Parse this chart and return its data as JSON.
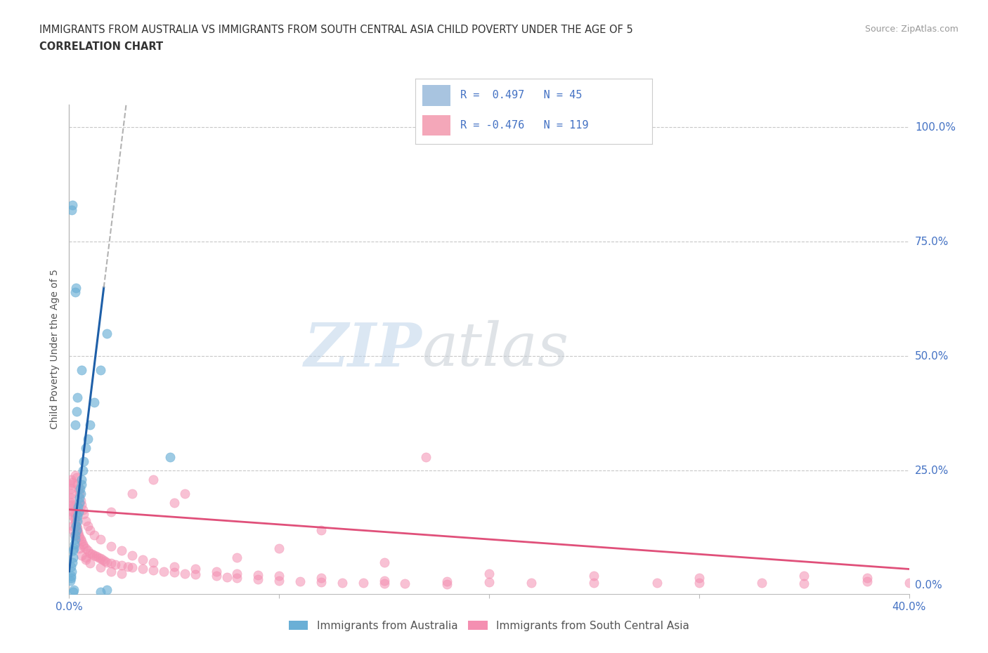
{
  "title_line1": "IMMIGRANTS FROM AUSTRALIA VS IMMIGRANTS FROM SOUTH CENTRAL ASIA CHILD POVERTY UNDER THE AGE OF 5",
  "title_line2": "CORRELATION CHART",
  "source_text": "Source: ZipAtlas.com",
  "ylabel": "Child Poverty Under the Age of 5",
  "xlim": [
    0.0,
    40.0
  ],
  "ylim": [
    -2.0,
    105.0
  ],
  "yticks": [
    0,
    25,
    50,
    75,
    100
  ],
  "ytick_labels": [
    "0.0%",
    "25.0%",
    "50.0%",
    "75.0%",
    "100.0%"
  ],
  "watermark_zip": "ZIP",
  "watermark_atlas": "atlas",
  "australia_color": "#6aafd6",
  "south_asia_color": "#f48fb1",
  "trendline_australia_color": "#1e5fa8",
  "trendline_south_asia_color": "#e0507a",
  "background_color": "#ffffff",
  "grid_color": "#c8c8c8",
  "axis_label_color": "#4472c4",
  "legend_box_color": "#a8c4e0",
  "legend_box_color2": "#f4a7b9",
  "australia_points": [
    [
      0.05,
      1.0
    ],
    [
      0.07,
      2.0
    ],
    [
      0.1,
      1.5
    ],
    [
      0.12,
      3.0
    ],
    [
      0.08,
      4.0
    ],
    [
      0.15,
      5.0
    ],
    [
      0.2,
      6.0
    ],
    [
      0.18,
      7.5
    ],
    [
      0.22,
      8.0
    ],
    [
      0.25,
      9.0
    ],
    [
      0.3,
      10.0
    ],
    [
      0.28,
      11.0
    ],
    [
      0.35,
      12.0
    ],
    [
      0.32,
      13.0
    ],
    [
      0.4,
      14.0
    ],
    [
      0.38,
      15.0
    ],
    [
      0.45,
      16.0
    ],
    [
      0.42,
      17.0
    ],
    [
      0.5,
      18.0
    ],
    [
      0.48,
      19.0
    ],
    [
      0.55,
      20.0
    ],
    [
      0.52,
      21.0
    ],
    [
      0.6,
      22.0
    ],
    [
      0.58,
      23.0
    ],
    [
      0.65,
      25.0
    ],
    [
      0.7,
      27.0
    ],
    [
      0.8,
      30.0
    ],
    [
      0.9,
      32.0
    ],
    [
      1.0,
      35.0
    ],
    [
      1.2,
      40.0
    ],
    [
      1.5,
      47.0
    ],
    [
      0.3,
      64.0
    ],
    [
      0.32,
      65.0
    ],
    [
      1.8,
      55.0
    ],
    [
      4.8,
      28.0
    ],
    [
      0.12,
      82.0
    ],
    [
      0.14,
      83.0
    ],
    [
      0.6,
      47.0
    ],
    [
      0.2,
      -1.5
    ],
    [
      0.22,
      -1.0
    ],
    [
      1.8,
      -1.0
    ],
    [
      1.5,
      -1.5
    ],
    [
      0.28,
      35.0
    ],
    [
      0.35,
      38.0
    ],
    [
      0.4,
      41.0
    ]
  ],
  "south_asia_points": [
    [
      0.05,
      22.0
    ],
    [
      0.08,
      21.0
    ],
    [
      0.1,
      23.0
    ],
    [
      0.12,
      20.0
    ],
    [
      0.15,
      22.5
    ],
    [
      0.08,
      19.0
    ],
    [
      0.1,
      18.0
    ],
    [
      0.12,
      17.5
    ],
    [
      0.15,
      16.0
    ],
    [
      0.18,
      17.0
    ],
    [
      0.2,
      15.0
    ],
    [
      0.22,
      16.0
    ],
    [
      0.25,
      14.5
    ],
    [
      0.28,
      15.0
    ],
    [
      0.3,
      13.5
    ],
    [
      0.32,
      14.0
    ],
    [
      0.35,
      13.0
    ],
    [
      0.38,
      12.5
    ],
    [
      0.4,
      12.0
    ],
    [
      0.42,
      11.5
    ],
    [
      0.45,
      11.0
    ],
    [
      0.5,
      10.5
    ],
    [
      0.55,
      10.0
    ],
    [
      0.6,
      9.5
    ],
    [
      0.65,
      9.0
    ],
    [
      0.7,
      8.5
    ],
    [
      0.8,
      8.0
    ],
    [
      0.9,
      7.5
    ],
    [
      1.0,
      7.0
    ],
    [
      1.1,
      6.8
    ],
    [
      1.2,
      6.5
    ],
    [
      1.3,
      6.3
    ],
    [
      1.4,
      6.0
    ],
    [
      1.5,
      5.8
    ],
    [
      1.6,
      5.5
    ],
    [
      1.7,
      5.3
    ],
    [
      1.8,
      5.0
    ],
    [
      2.0,
      4.8
    ],
    [
      2.2,
      4.5
    ],
    [
      2.5,
      4.3
    ],
    [
      2.8,
      4.0
    ],
    [
      3.0,
      3.8
    ],
    [
      3.5,
      3.5
    ],
    [
      4.0,
      3.3
    ],
    [
      4.5,
      3.0
    ],
    [
      5.0,
      2.8
    ],
    [
      5.5,
      2.5
    ],
    [
      6.0,
      2.3
    ],
    [
      7.0,
      2.0
    ],
    [
      7.5,
      1.8
    ],
    [
      8.0,
      1.5
    ],
    [
      9.0,
      1.3
    ],
    [
      10.0,
      1.0
    ],
    [
      11.0,
      0.8
    ],
    [
      12.0,
      0.7
    ],
    [
      13.0,
      0.5
    ],
    [
      14.0,
      0.5
    ],
    [
      15.0,
      0.3
    ],
    [
      16.0,
      0.3
    ],
    [
      18.0,
      0.2
    ],
    [
      0.3,
      24.0
    ],
    [
      0.35,
      23.5
    ],
    [
      0.4,
      22.0
    ],
    [
      0.45,
      21.0
    ],
    [
      0.5,
      20.0
    ],
    [
      0.55,
      18.5
    ],
    [
      0.6,
      17.5
    ],
    [
      0.65,
      16.5
    ],
    [
      0.7,
      15.5
    ],
    [
      0.8,
      14.0
    ],
    [
      0.9,
      13.0
    ],
    [
      1.0,
      12.0
    ],
    [
      1.2,
      11.0
    ],
    [
      1.5,
      10.0
    ],
    [
      2.0,
      8.5
    ],
    [
      2.5,
      7.5
    ],
    [
      3.0,
      6.5
    ],
    [
      3.5,
      5.5
    ],
    [
      4.0,
      5.0
    ],
    [
      5.0,
      4.0
    ],
    [
      6.0,
      3.5
    ],
    [
      7.0,
      3.0
    ],
    [
      8.0,
      2.5
    ],
    [
      9.0,
      2.2
    ],
    [
      10.0,
      2.0
    ],
    [
      12.0,
      1.5
    ],
    [
      15.0,
      1.0
    ],
    [
      18.0,
      0.8
    ],
    [
      20.0,
      0.7
    ],
    [
      22.0,
      0.5
    ],
    [
      25.0,
      0.5
    ],
    [
      28.0,
      0.5
    ],
    [
      30.0,
      0.5
    ],
    [
      33.0,
      0.5
    ],
    [
      35.0,
      0.3
    ],
    [
      38.0,
      0.8
    ],
    [
      40.0,
      0.5
    ],
    [
      2.0,
      16.0
    ],
    [
      3.0,
      20.0
    ],
    [
      5.5,
      20.0
    ],
    [
      10.0,
      8.0
    ],
    [
      12.0,
      12.0
    ],
    [
      17.0,
      28.0
    ],
    [
      4.0,
      23.0
    ],
    [
      5.0,
      18.0
    ],
    [
      8.0,
      6.0
    ],
    [
      15.0,
      5.0
    ],
    [
      0.6,
      6.5
    ],
    [
      0.8,
      5.5
    ],
    [
      1.0,
      4.8
    ],
    [
      1.5,
      3.8
    ],
    [
      2.0,
      3.0
    ],
    [
      2.5,
      2.5
    ],
    [
      20.0,
      2.5
    ],
    [
      25.0,
      2.0
    ],
    [
      30.0,
      1.5
    ],
    [
      35.0,
      2.0
    ],
    [
      38.0,
      1.5
    ],
    [
      0.15,
      13.0
    ],
    [
      0.2,
      12.0
    ],
    [
      0.25,
      11.0
    ],
    [
      0.5,
      8.0
    ],
    [
      0.8,
      6.0
    ]
  ],
  "aus_trendline_solid_x0": 0.0,
  "aus_trendline_solid_y0": 3.0,
  "aus_trendline_solid_x1": 1.65,
  "aus_trendline_solid_y1": 65.0,
  "aus_trendline_dashed_x0": 1.65,
  "aus_trendline_dashed_y0": 65.0,
  "aus_trendline_dashed_x1": 3.8,
  "aus_trendline_dashed_y1": 105.0,
  "asia_trendline_x0": 0.0,
  "asia_trendline_y0": 16.5,
  "asia_trendline_x1": 40.0,
  "asia_trendline_y1": 3.5
}
